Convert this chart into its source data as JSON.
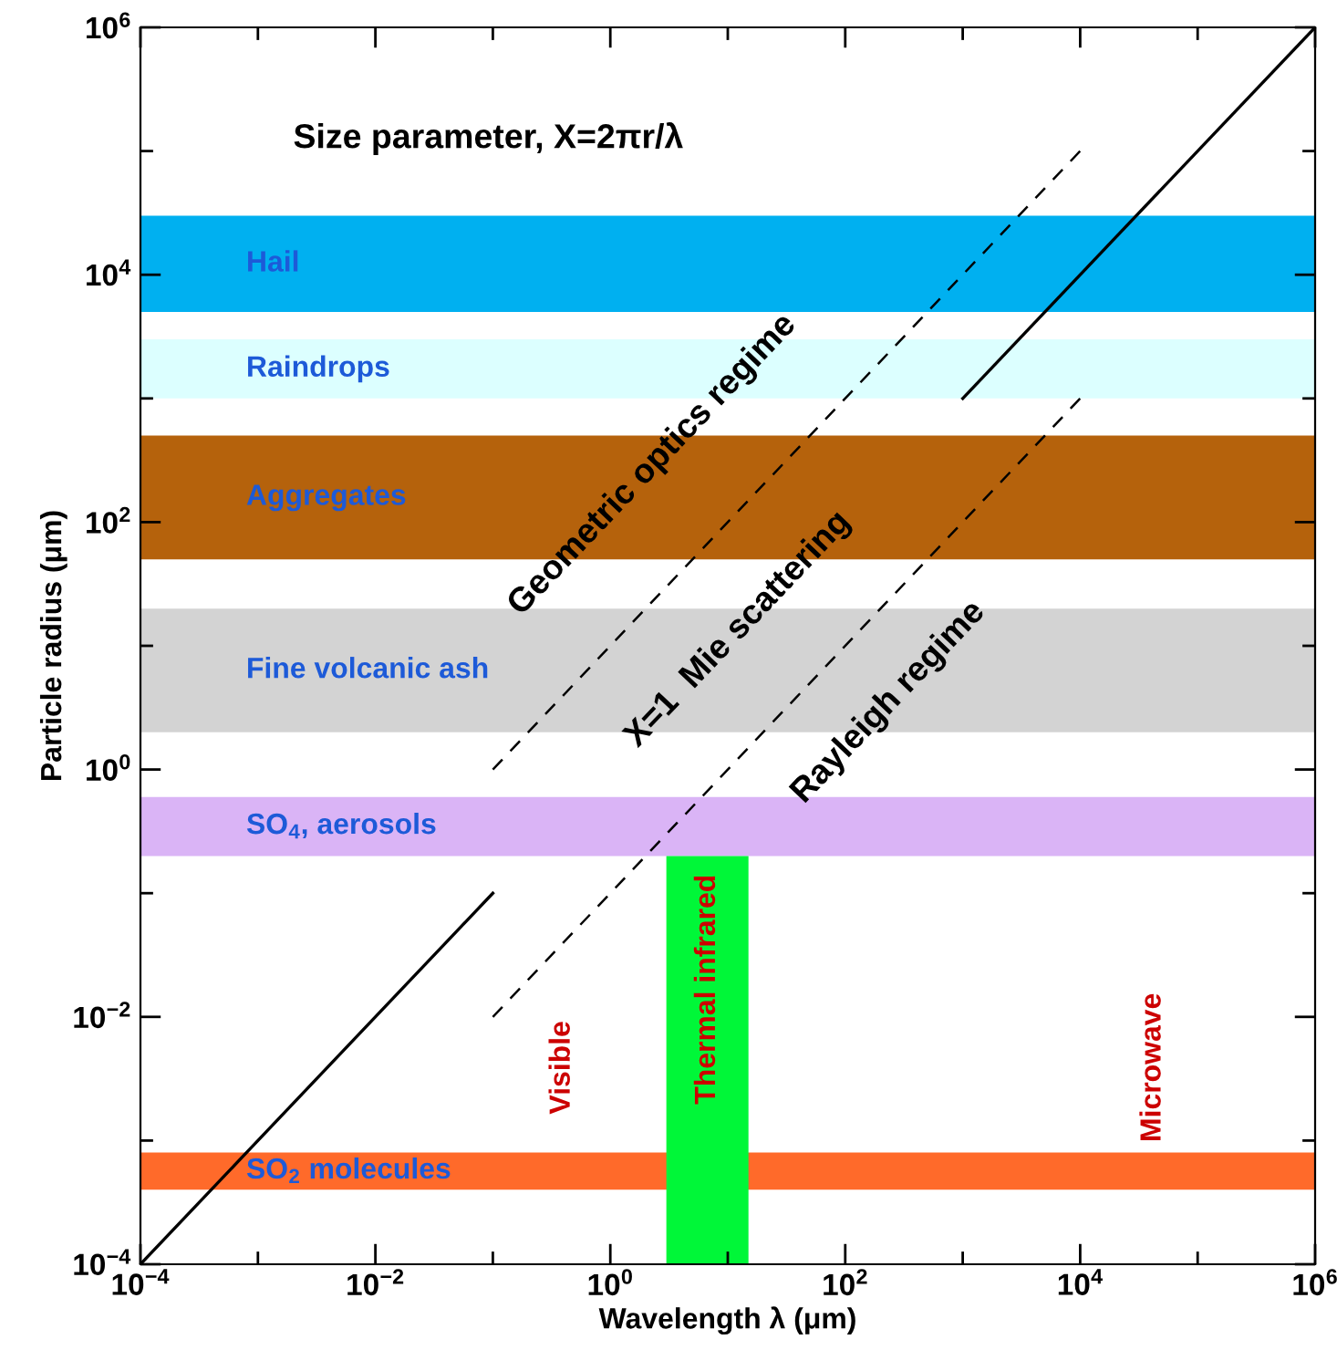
{
  "chart_data": {
    "type": "area",
    "title": "Size parameter, X=2πr/λ",
    "xlabel": "Wavelength λ (μm)",
    "ylabel": "Particle radius (μm)",
    "log": "xy",
    "grid": false,
    "legend": false,
    "xlim": [
      0.0001,
      1000000
    ],
    "ylim": [
      0.0001,
      1000000
    ],
    "xticks": [
      {
        "value": 0.0001,
        "label": "10$^{−4}$"
      },
      {
        "value": 0.001,
        "label": null
      },
      {
        "value": 0.01,
        "label": "10$^{−2}$"
      },
      {
        "value": 0.1,
        "label": null
      },
      {
        "value": 1,
        "label": "10$^{0}$"
      },
      {
        "value": 10,
        "label": null
      },
      {
        "value": 100,
        "label": "10$^{2}$"
      },
      {
        "value": 1000,
        "label": null
      },
      {
        "value": 10000,
        "label": "10$^{4}$"
      },
      {
        "value": 100000,
        "label": null
      },
      {
        "value": 1000000,
        "label": "10$^{6}$"
      }
    ],
    "yticks": [
      {
        "value": 0.0001,
        "label": "10$^{−4}$"
      },
      {
        "value": 0.001,
        "label": null
      },
      {
        "value": 0.01,
        "label": "10$^{−2}$"
      },
      {
        "value": 0.1,
        "label": null
      },
      {
        "value": 1,
        "label": "10$^{0}$"
      },
      {
        "value": 10,
        "label": null
      },
      {
        "value": 100,
        "label": "10$^{2}$"
      },
      {
        "value": 1000,
        "label": null
      },
      {
        "value": 10000,
        "label": "10$^{4}$"
      },
      {
        "value": 100000,
        "label": null
      },
      {
        "value": 1000000,
        "label": "10$^{6}$"
      }
    ],
    "bands": [
      {
        "axis": "y",
        "from": 5000,
        "to": 30000,
        "label": "Hail",
        "color": "#00b0f0"
      },
      {
        "axis": "y",
        "from": 1000,
        "to": 3000,
        "label": "Raindrops",
        "color": "#dcffff"
      },
      {
        "axis": "y",
        "from": 50,
        "to": 500,
        "label": "Aggregates",
        "color": "#b5620c"
      },
      {
        "axis": "y",
        "from": 2,
        "to": 20,
        "label": "Fine volcanic ash",
        "color": "#d3d3d3"
      },
      {
        "axis": "y",
        "from": 0.2,
        "to": 0.6,
        "label": "SO$_{4}$, aerosols",
        "color": "#dab4f6"
      },
      {
        "axis": "y",
        "from": 0.0004,
        "to": 0.0008,
        "label": "SO$_{2}$ molecules",
        "color": "#ff6a2a"
      }
    ],
    "series": [
      {
        "name": "Thermal infrared",
        "color": "#00f738",
        "x": [
          3,
          15
        ],
        "values": [
          0.2,
          0.2
        ]
      },
      {
        "type": "line",
        "color": "#000000",
        "line_style": "solid",
        "x": [
          0.0001,
          0.1
        ],
        "values": [
          0.0001,
          0.1
        ]
      },
      {
        "type": "line",
        "color": "#000000",
        "line_style": "solid",
        "x": [
          1000,
          1000000
        ],
        "values": [
          1000,
          1000000
        ]
      },
      {
        "type": "line",
        "color": "#000000",
        "line_style": "dashed",
        "x": [
          0.1,
          10000
        ],
        "values": [
          1,
          100000
        ]
      },
      {
        "type": "line",
        "color": "#000000",
        "line_style": "dashed",
        "x": [
          0.1,
          10000
        ],
        "values": [
          0.01,
          1000
        ]
      }
    ],
    "annotations": [
      "Geometric optics regime",
      "X=1  Mie scattering",
      "Rayleigh regime",
      "Visible",
      "Microwave"
    ]
  }
}
